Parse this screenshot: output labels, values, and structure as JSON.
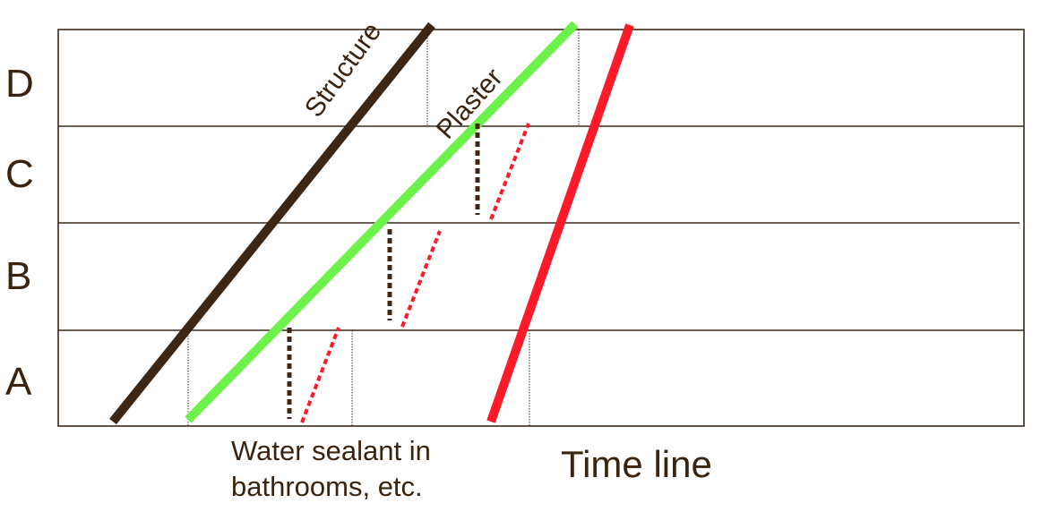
{
  "floors": [
    "A",
    "B",
    "C",
    "D"
  ],
  "series": [
    {
      "name": "Structure",
      "color": "#3d2614"
    },
    {
      "name": "Plaster",
      "color": "#6cf24a"
    },
    {
      "name": "",
      "color": "#ff1a2a"
    }
  ],
  "water_sealant": {
    "label_line1": "Water sealant in",
    "label_line2": "bathrooms, etc.",
    "dark_color": "#3d2614",
    "red_color": "#ff1a2a"
  },
  "time_axis_label": "Time line",
  "colors": {
    "grid": "#3a2a1a",
    "text": "#3a2410"
  }
}
